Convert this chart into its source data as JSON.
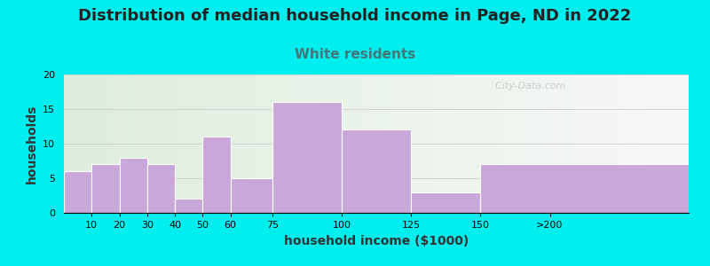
{
  "title": "Distribution of median household income in Page, ND in 2022",
  "subtitle": "White residents",
  "xlabel": "household income ($1000)",
  "ylabel": "households",
  "background_color": "#00EEEE",
  "bar_color": "#c8a8d8",
  "values": [
    6,
    7,
    8,
    7,
    2,
    11,
    5,
    16,
    12,
    3,
    7
  ],
  "bar_lefts": [
    0,
    10,
    20,
    30,
    40,
    50,
    60,
    75,
    100,
    125,
    150
  ],
  "bar_rights": [
    10,
    20,
    30,
    40,
    50,
    60,
    75,
    100,
    125,
    150,
    225
  ],
  "xtick_positions": [
    10,
    20,
    30,
    40,
    50,
    60,
    75,
    100,
    125,
    150,
    175
  ],
  "xtick_labels": [
    "10",
    "20",
    "30",
    "40",
    "50",
    "60",
    "75",
    "100",
    "125",
    "150",
    ">200"
  ],
  "xlim": [
    0,
    225
  ],
  "ylim": [
    0,
    20
  ],
  "yticks": [
    0,
    5,
    10,
    15,
    20
  ],
  "title_fontsize": 13,
  "subtitle_fontsize": 11,
  "subtitle_color": "#447777",
  "axis_label_fontsize": 10,
  "tick_fontsize": 8,
  "watermark": "  City-Data.com"
}
